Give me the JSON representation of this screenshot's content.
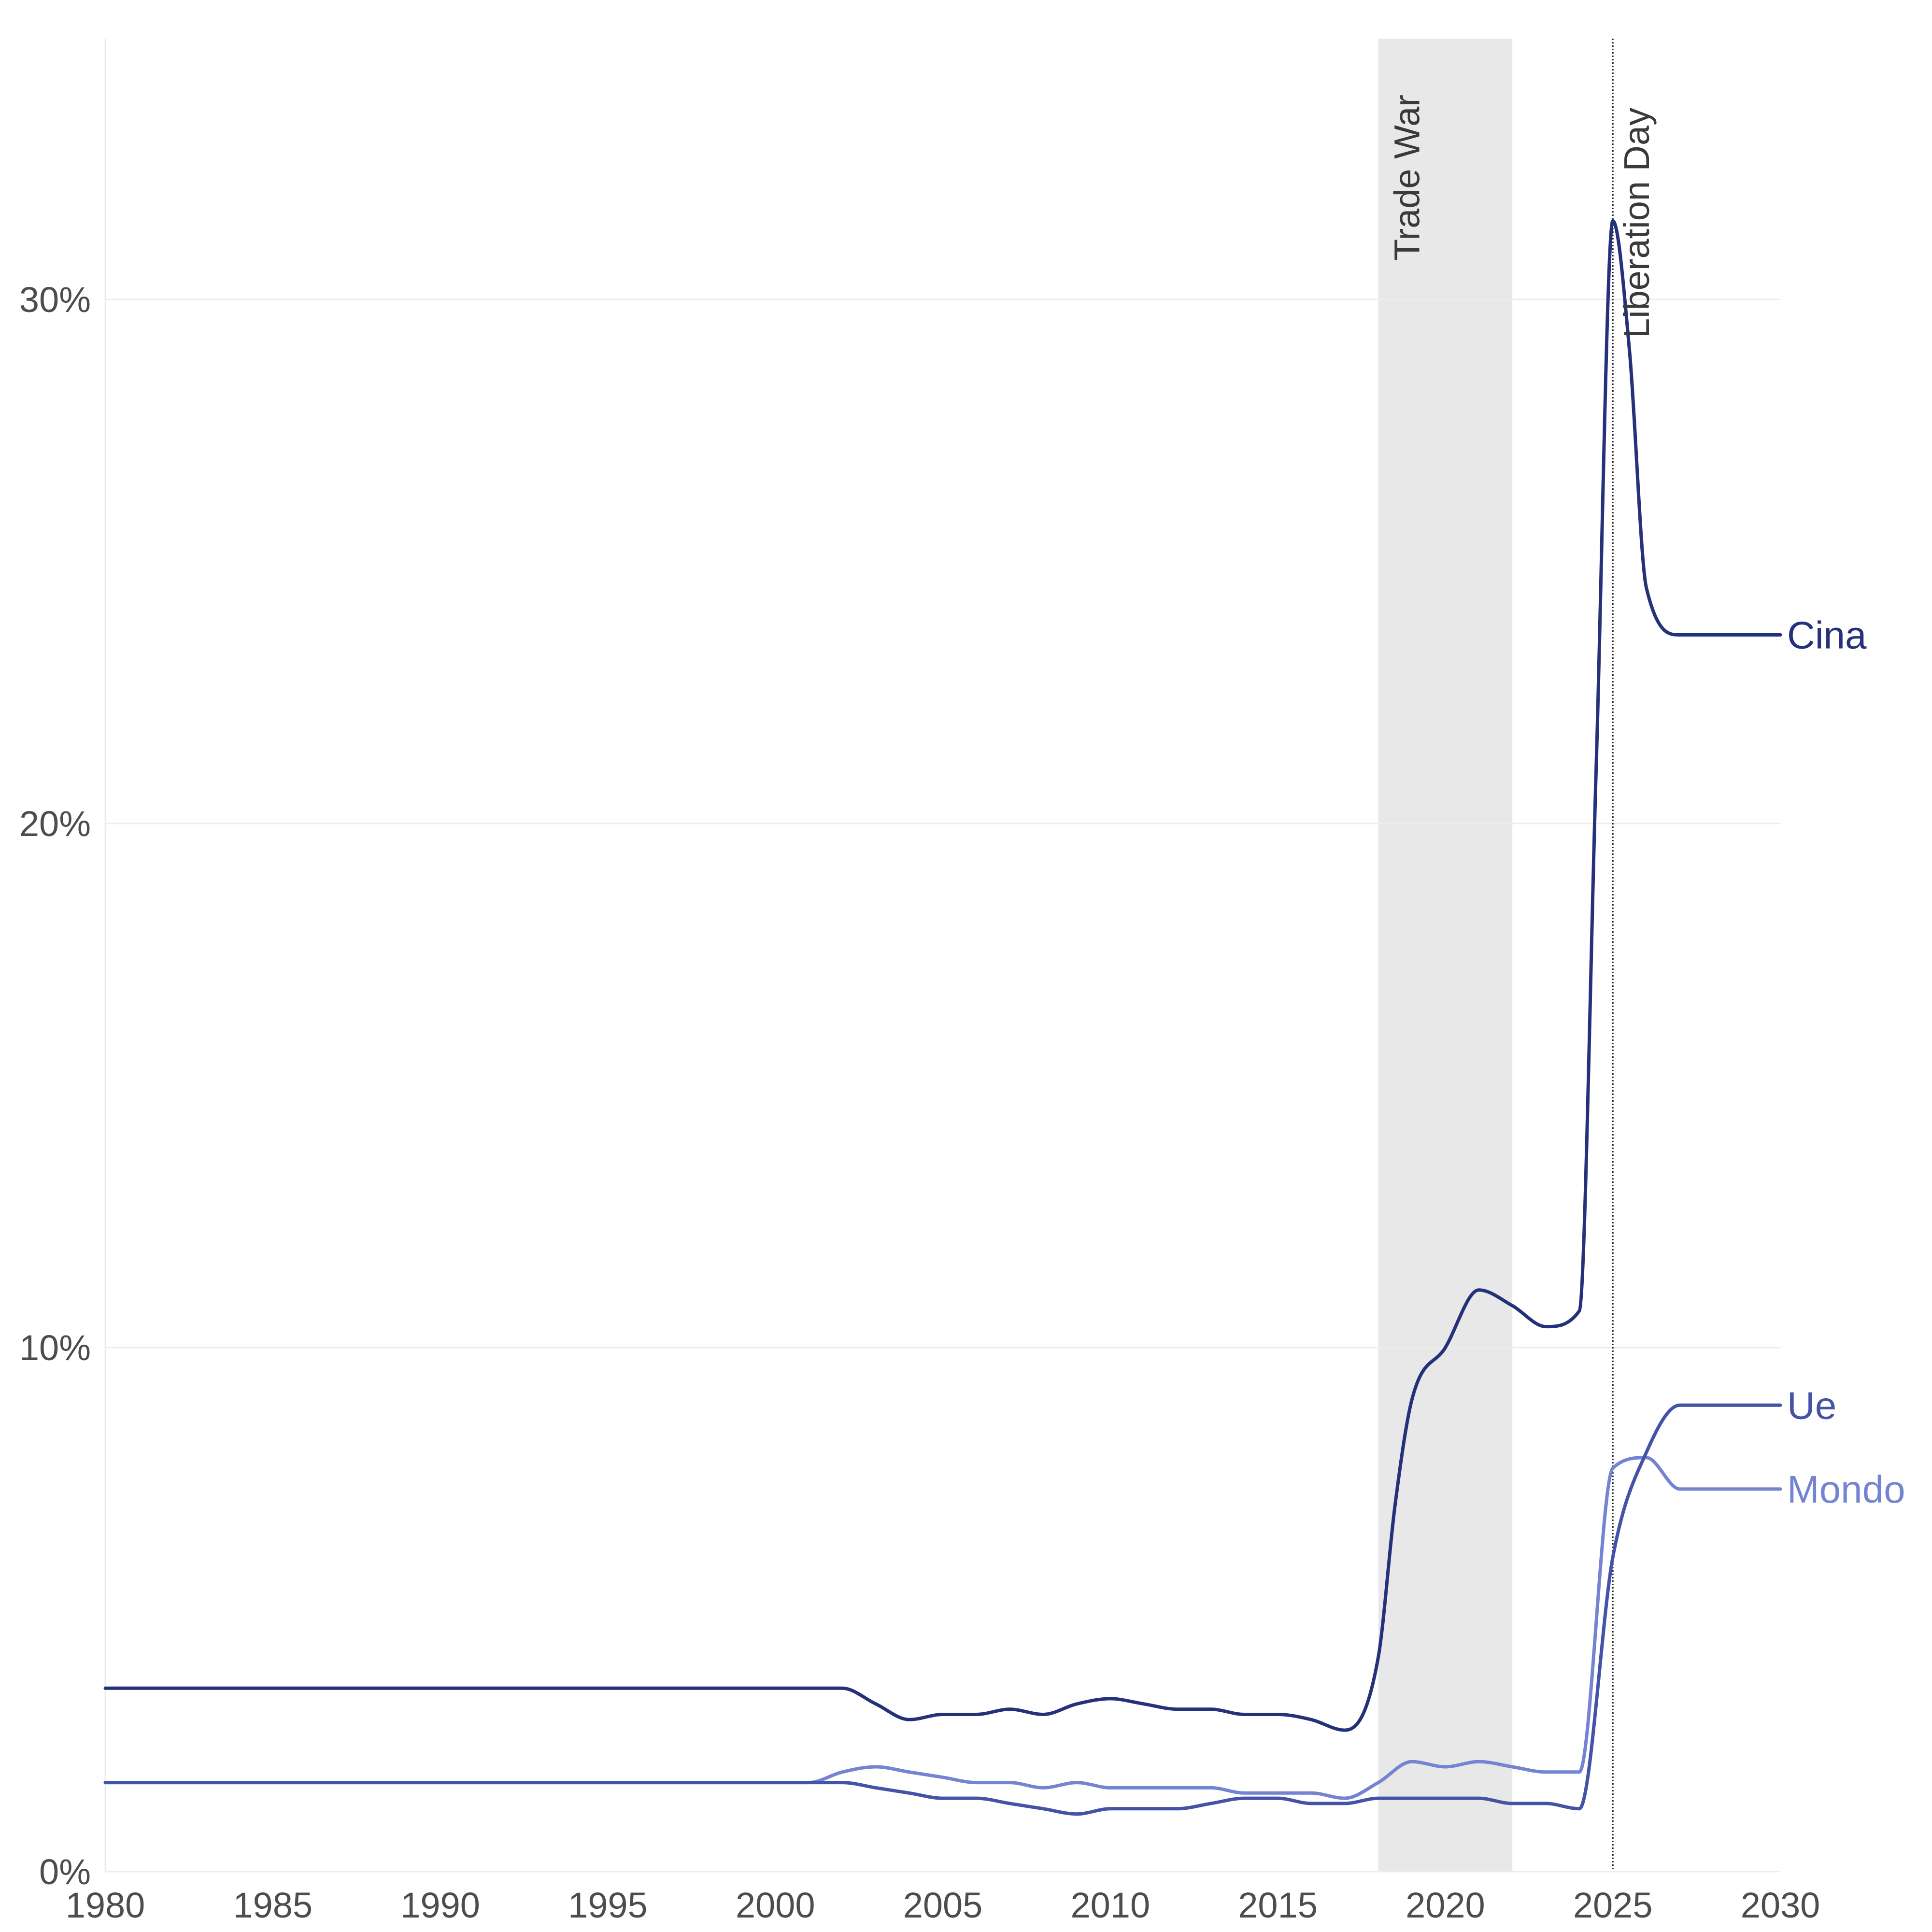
{
  "chart_data": {
    "type": "line",
    "title": "",
    "xlabel": "",
    "ylabel": "",
    "xlim": [
      1980,
      2030
    ],
    "ylim": [
      0,
      35
    ],
    "x_ticks": [
      1980,
      1985,
      1990,
      1995,
      2000,
      2005,
      2010,
      2015,
      2020,
      2025,
      2030
    ],
    "x_tick_labels": [
      "1980",
      "1985",
      "1990",
      "1995",
      "2000",
      "2005",
      "2010",
      "2015",
      "2020",
      "2025",
      "2030"
    ],
    "y_ticks": [
      0,
      10,
      20,
      30
    ],
    "y_tick_labels": [
      "0%",
      "10%",
      "20%",
      "30%"
    ],
    "grid": "horizontal",
    "legend": "direct labels at line ends (right)",
    "annotations": [
      {
        "type": "span",
        "x_start": 2018,
        "x_end": 2022,
        "label": "Trade War",
        "color": "#e8e8e8"
      },
      {
        "type": "vline",
        "x": 2025,
        "label": "Liberation Day",
        "style": "dotted",
        "color": "#222222"
      }
    ],
    "series": [
      {
        "name": "Cina",
        "color": "#25327a",
        "points": [
          [
            1980,
            3.5
          ],
          [
            2002,
            3.5
          ],
          [
            2003,
            3.2
          ],
          [
            2004,
            2.9
          ],
          [
            2005,
            3.0
          ],
          [
            2006,
            3.0
          ],
          [
            2007,
            3.1
          ],
          [
            2008,
            3.0
          ],
          [
            2009,
            3.2
          ],
          [
            2010,
            3.3
          ],
          [
            2011,
            3.2
          ],
          [
            2012,
            3.1
          ],
          [
            2013,
            3.1
          ],
          [
            2014,
            3.0
          ],
          [
            2015,
            3.0
          ],
          [
            2016,
            2.9
          ],
          [
            2017,
            2.7
          ],
          [
            2018,
            4.1
          ],
          [
            2018.5,
            7.0
          ],
          [
            2019,
            9.0
          ],
          [
            2020,
            10.0
          ],
          [
            2021,
            11.1
          ],
          [
            2022,
            10.8
          ],
          [
            2023,
            10.4
          ],
          [
            2024,
            10.7
          ],
          [
            2024.5,
            21.0
          ],
          [
            2025,
            31.5
          ],
          [
            2025.5,
            29.0
          ],
          [
            2026,
            24.5
          ],
          [
            2027,
            23.6
          ],
          [
            2030,
            23.6
          ]
        ]
      },
      {
        "name": "Ue",
        "color": "#4452a8",
        "points": [
          [
            1980,
            1.7
          ],
          [
            2002,
            1.7
          ],
          [
            2003,
            1.6
          ],
          [
            2004,
            1.5
          ],
          [
            2005,
            1.4
          ],
          [
            2006,
            1.4
          ],
          [
            2007,
            1.3
          ],
          [
            2008,
            1.2
          ],
          [
            2009,
            1.1
          ],
          [
            2010,
            1.2
          ],
          [
            2011,
            1.2
          ],
          [
            2012,
            1.2
          ],
          [
            2013,
            1.3
          ],
          [
            2014,
            1.4
          ],
          [
            2015,
            1.4
          ],
          [
            2016,
            1.3
          ],
          [
            2017,
            1.3
          ],
          [
            2018,
            1.4
          ],
          [
            2019,
            1.4
          ],
          [
            2020,
            1.4
          ],
          [
            2021,
            1.4
          ],
          [
            2022,
            1.3
          ],
          [
            2023,
            1.3
          ],
          [
            2024,
            1.2
          ],
          [
            2025,
            6.0
          ],
          [
            2026,
            8.0
          ],
          [
            2027,
            8.9
          ],
          [
            2030,
            8.9
          ]
        ]
      },
      {
        "name": "Mondo",
        "color": "#7584d2",
        "points": [
          [
            1980,
            1.7
          ],
          [
            2001,
            1.7
          ],
          [
            2002,
            1.9
          ],
          [
            2003,
            2.0
          ],
          [
            2004,
            1.9
          ],
          [
            2005,
            1.8
          ],
          [
            2006,
            1.7
          ],
          [
            2007,
            1.7
          ],
          [
            2008,
            1.6
          ],
          [
            2009,
            1.7
          ],
          [
            2010,
            1.6
          ],
          [
            2011,
            1.6
          ],
          [
            2012,
            1.6
          ],
          [
            2013,
            1.6
          ],
          [
            2014,
            1.5
          ],
          [
            2015,
            1.5
          ],
          [
            2016,
            1.5
          ],
          [
            2017,
            1.4
          ],
          [
            2018,
            1.7
          ],
          [
            2019,
            2.1
          ],
          [
            2020,
            2.0
          ],
          [
            2021,
            2.1
          ],
          [
            2022,
            2.0
          ],
          [
            2023,
            1.9
          ],
          [
            2024,
            1.9
          ],
          [
            2025,
            7.7
          ],
          [
            2026,
            7.9
          ],
          [
            2027,
            7.3
          ],
          [
            2030,
            7.3
          ]
        ]
      }
    ]
  }
}
